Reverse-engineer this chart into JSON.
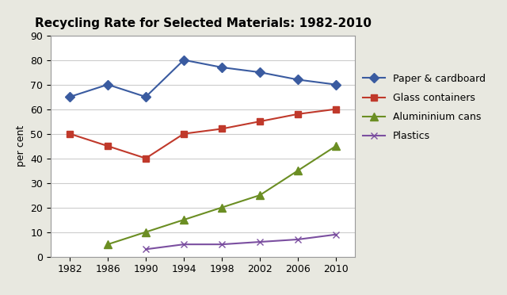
{
  "title": "Recycling Rate for Selected Materials: 1982-2010",
  "ylabel": "per cent",
  "years": [
    1982,
    1986,
    1990,
    1994,
    1998,
    2002,
    2006,
    2010
  ],
  "series": {
    "Paper & cardboard": {
      "values": [
        65,
        70,
        65,
        80,
        77,
        75,
        72,
        70
      ],
      "color": "#3a5ba0",
      "marker": "D",
      "markersize": 6
    },
    "Glass containers": {
      "values": [
        50,
        45,
        40,
        50,
        52,
        55,
        58,
        60
      ],
      "color": "#c0392b",
      "marker": "s",
      "markersize": 6
    },
    "Alumininium cans": {
      "values": [
        null,
        5,
        10,
        15,
        20,
        25,
        35,
        45
      ],
      "color": "#6b8e23",
      "marker": "^",
      "markersize": 7
    },
    "Plastics": {
      "values": [
        null,
        null,
        3,
        5,
        5,
        6,
        7,
        9
      ],
      "color": "#7b4fa0",
      "marker": "x",
      "markersize": 6
    }
  },
  "ylim": [
    0,
    90
  ],
  "yticks": [
    0,
    10,
    20,
    30,
    40,
    50,
    60,
    70,
    80,
    90
  ],
  "xlim": [
    1980,
    2012
  ],
  "outer_bg": "#e8e8e0",
  "plot_bg": "#ffffff",
  "grid_color": "#cccccc",
  "title_fontsize": 11,
  "legend_fontsize": 9,
  "tick_fontsize": 9,
  "ylabel_fontsize": 9
}
